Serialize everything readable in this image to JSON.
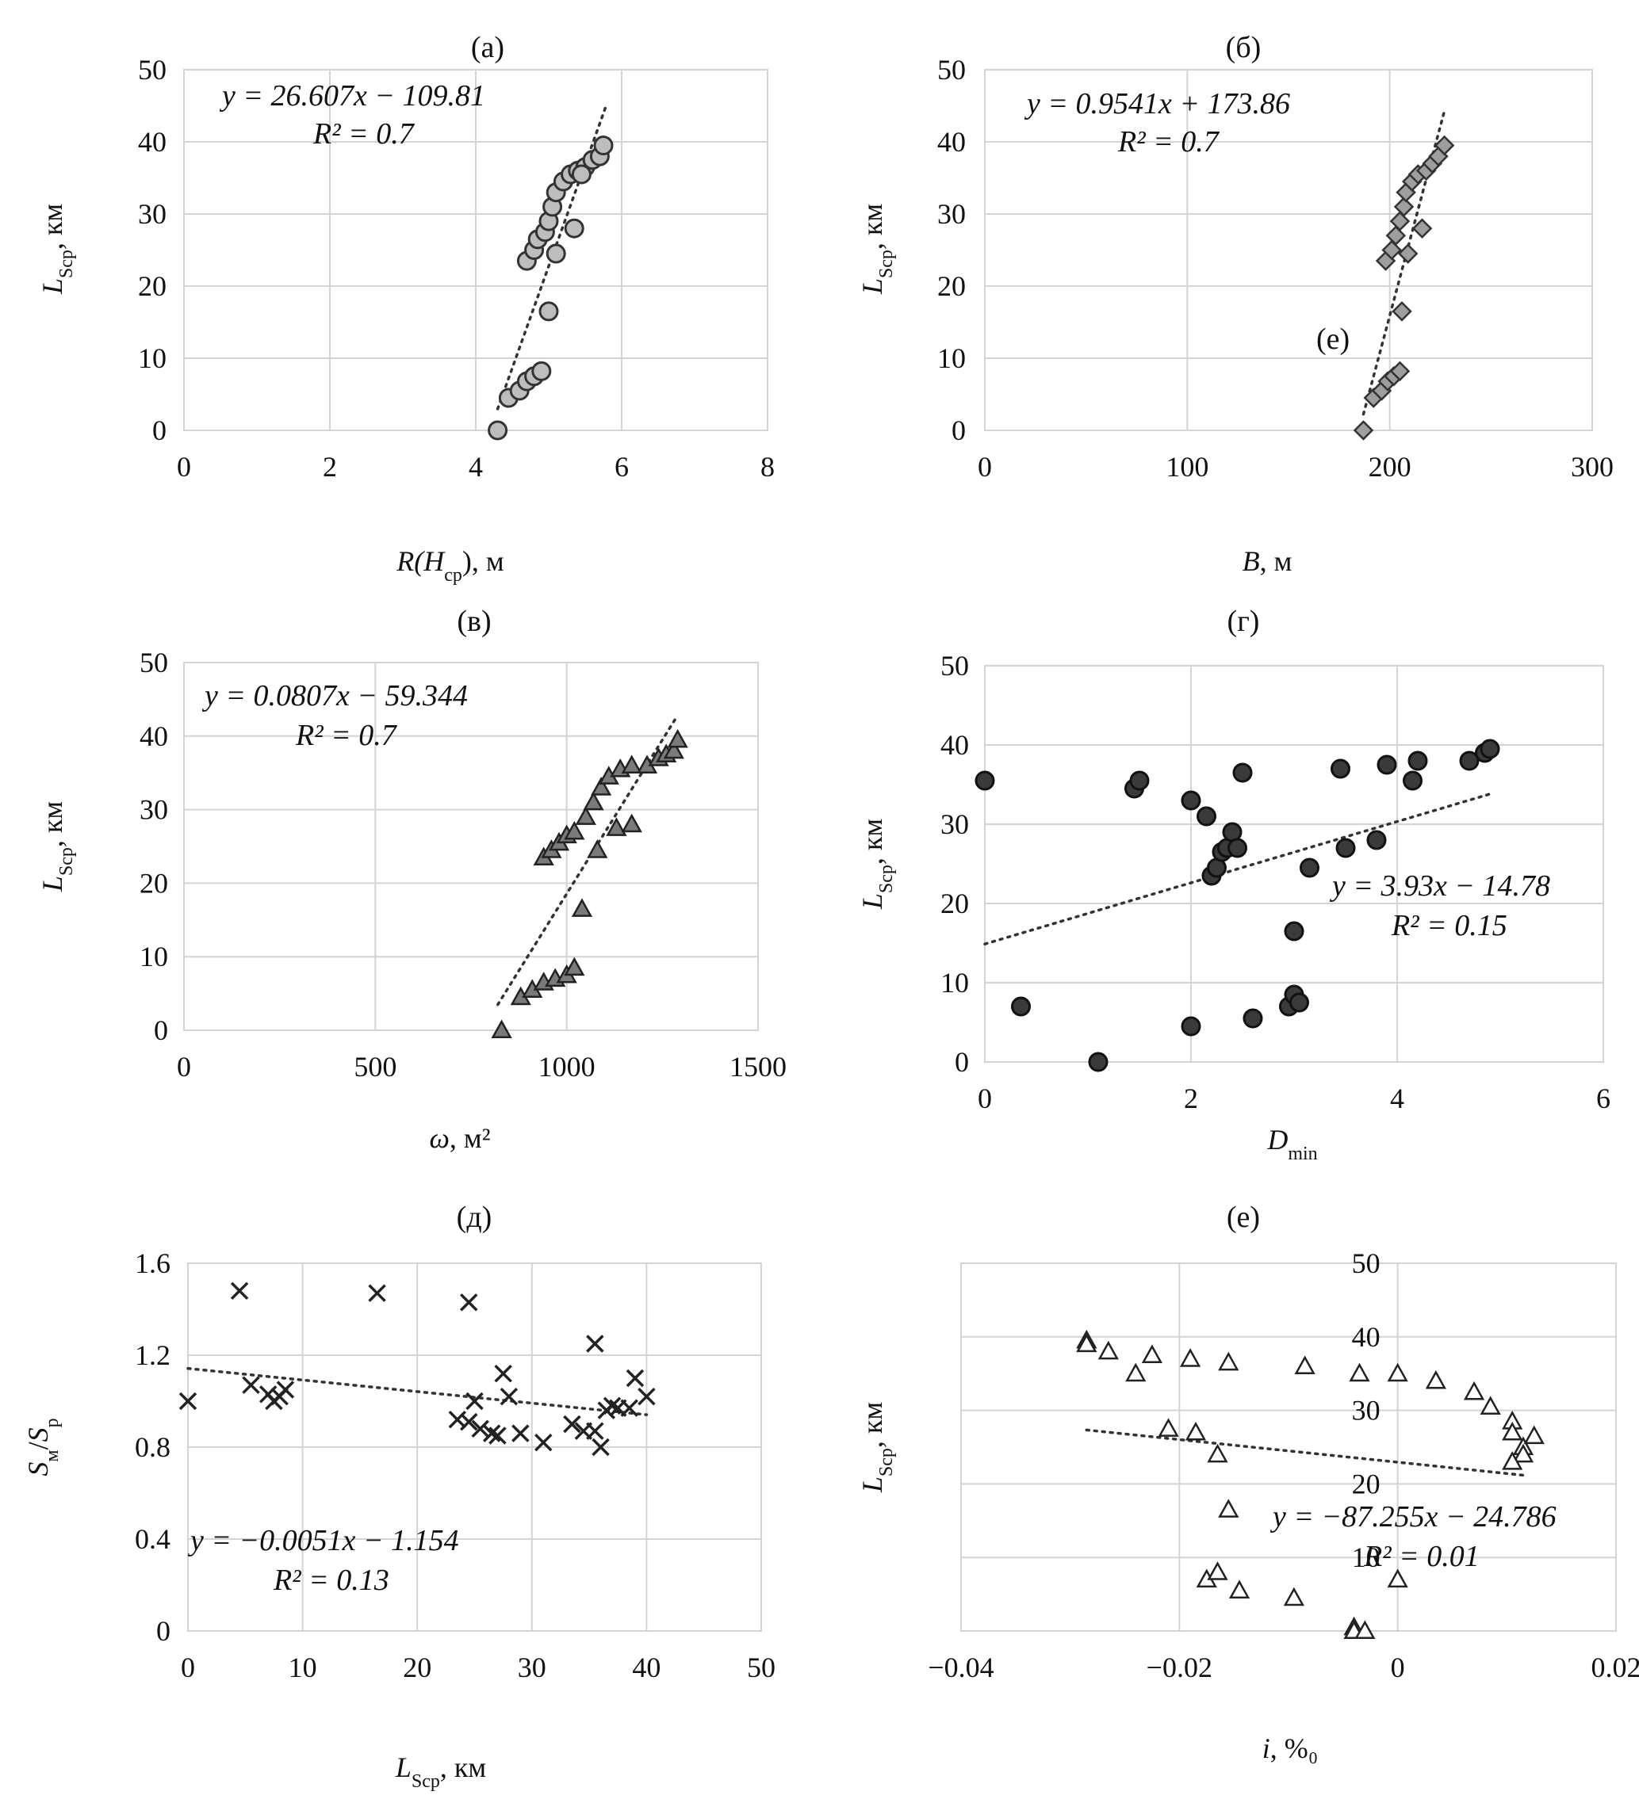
{
  "chart_data": [
    {
      "id": "a",
      "type": "scatter",
      "title": "(а)",
      "xlabel": {
        "main": "R(H",
        "sub": "ср",
        "after": "), м"
      },
      "ylabel": {
        "main": "L",
        "sub": "Sср",
        "after": ", км"
      },
      "xlim": [
        0,
        8
      ],
      "ylim": [
        0,
        50
      ],
      "xticks": [
        0,
        2,
        4,
        6,
        8
      ],
      "yticks": [
        0,
        10,
        20,
        30,
        40,
        50
      ],
      "grid": true,
      "marker": "circle",
      "marker_fill": "#bdbdbd",
      "marker_stroke": "#333333",
      "points": [
        [
          4.3,
          0
        ],
        [
          4.45,
          4.5
        ],
        [
          4.6,
          5.5
        ],
        [
          4.7,
          6.8
        ],
        [
          4.8,
          7.5
        ],
        [
          4.9,
          8.2
        ],
        [
          5.0,
          16.5
        ],
        [
          4.7,
          23.5
        ],
        [
          4.8,
          25
        ],
        [
          4.85,
          26.5
        ],
        [
          4.95,
          27.5
        ],
        [
          5.1,
          24.5
        ],
        [
          5.35,
          28
        ],
        [
          5.0,
          29
        ],
        [
          5.05,
          31
        ],
        [
          5.1,
          33
        ],
        [
          5.2,
          34.5
        ],
        [
          5.3,
          35.5
        ],
        [
          5.4,
          36
        ],
        [
          5.5,
          36.5
        ],
        [
          5.45,
          35.5
        ],
        [
          5.6,
          37.5
        ],
        [
          5.7,
          38
        ],
        [
          5.75,
          39.5
        ]
      ],
      "trendline": {
        "x": [
          4.3,
          5.8
        ],
        "equation": "y = 26.607x − 109.81",
        "r2": "R² = 0.7"
      },
      "annotations": []
    },
    {
      "id": "b",
      "type": "scatter",
      "title": "(б)",
      "xlabel": {
        "main": "B",
        "sub": "",
        "after": ", м"
      },
      "ylabel": {
        "main": "L",
        "sub": "Sср",
        "after": ", км"
      },
      "xlim": [
        0,
        300
      ],
      "ylim": [
        0,
        50
      ],
      "xticks": [
        0,
        100,
        200,
        300
      ],
      "yticks": [
        0,
        10,
        20,
        30,
        40,
        50
      ],
      "grid": true,
      "marker": "diamond",
      "marker_fill": "#9e9e9e",
      "marker_stroke": "#333333",
      "points": [
        [
          187,
          0
        ],
        [
          192,
          4.5
        ],
        [
          196,
          5.5
        ],
        [
          199,
          6.8
        ],
        [
          202,
          7.5
        ],
        [
          205,
          8.2
        ],
        [
          206,
          16.5
        ],
        [
          198,
          23.5
        ],
        [
          201,
          25
        ],
        [
          203,
          27
        ],
        [
          205,
          29
        ],
        [
          207,
          31
        ],
        [
          209,
          24.5
        ],
        [
          216,
          28
        ],
        [
          208,
          33
        ],
        [
          211,
          34.5
        ],
        [
          214,
          35.5
        ],
        [
          218,
          36
        ],
        [
          221,
          37
        ],
        [
          224,
          38
        ],
        [
          227,
          39.5
        ]
      ],
      "trendline": {
        "x": [
          187,
          227
        ],
        "equation": "y = 0.9541x + 173.86",
        "r2": "R² = 0.7"
      },
      "annotations": [
        "(е)"
      ]
    },
    {
      "id": "v",
      "type": "scatter",
      "title": "(в)",
      "xlabel": {
        "main": "ω",
        "sub": "",
        "after": ", м²"
      },
      "ylabel": {
        "main": "L",
        "sub": "Sср",
        "after": ", км"
      },
      "xlim": [
        0,
        1500
      ],
      "ylim": [
        0,
        50
      ],
      "xticks": [
        0,
        500,
        1000,
        1500
      ],
      "yticks": [
        0,
        10,
        20,
        30,
        40,
        50
      ],
      "grid": true,
      "marker": "triangle",
      "marker_fill": "#7a7a7a",
      "marker_stroke": "#222222",
      "points": [
        [
          830,
          0
        ],
        [
          880,
          4.5
        ],
        [
          910,
          5.5
        ],
        [
          940,
          6.5
        ],
        [
          970,
          7
        ],
        [
          1000,
          7.5
        ],
        [
          1020,
          8.5
        ],
        [
          1040,
          16.5
        ],
        [
          940,
          23.5
        ],
        [
          960,
          24.5
        ],
        [
          980,
          25.5
        ],
        [
          1000,
          26.5
        ],
        [
          1020,
          27
        ],
        [
          1050,
          29
        ],
        [
          1070,
          31
        ],
        [
          1090,
          33
        ],
        [
          1110,
          34.5
        ],
        [
          1140,
          35.5
        ],
        [
          1170,
          36
        ],
        [
          1210,
          36
        ],
        [
          1240,
          37
        ],
        [
          1260,
          37.5
        ],
        [
          1280,
          38
        ],
        [
          1290,
          39.5
        ],
        [
          1080,
          24.5
        ],
        [
          1130,
          27.5
        ],
        [
          1170,
          28
        ]
      ],
      "trendline": {
        "x": [
          820,
          1290
        ],
        "equation": "y = 0.0807x − 59.344",
        "r2": "R² = 0.7"
      },
      "annotations": []
    },
    {
      "id": "g",
      "type": "scatter",
      "title": "(г)",
      "xlabel": {
        "main": "D",
        "sub": "min",
        "after": ""
      },
      "ylabel": {
        "main": "L",
        "sub": "Sср",
        "after": ", км"
      },
      "xlim": [
        0,
        6
      ],
      "ylim": [
        0,
        50
      ],
      "xticks": [
        0,
        2,
        4,
        6
      ],
      "yticks": [
        0,
        10,
        20,
        30,
        40,
        50
      ],
      "grid": true,
      "marker": "circle",
      "marker_fill": "#3a3a3a",
      "marker_stroke": "#111111",
      "points": [
        [
          0,
          35.5
        ],
        [
          0.35,
          7
        ],
        [
          1.1,
          0
        ],
        [
          1.45,
          34.5
        ],
        [
          1.5,
          35.5
        ],
        [
          2.0,
          33
        ],
        [
          2.0,
          4.5
        ],
        [
          2.15,
          31
        ],
        [
          2.2,
          23.5
        ],
        [
          2.25,
          24.5
        ],
        [
          2.3,
          26.5
        ],
        [
          2.35,
          27
        ],
        [
          2.4,
          29
        ],
        [
          2.45,
          27
        ],
        [
          2.5,
          36.5
        ],
        [
          2.6,
          5.5
        ],
        [
          2.95,
          7
        ],
        [
          3.0,
          8.5
        ],
        [
          3.0,
          16.5
        ],
        [
          3.05,
          7.5
        ],
        [
          3.15,
          24.5
        ],
        [
          3.45,
          37
        ],
        [
          3.5,
          27
        ],
        [
          3.8,
          28
        ],
        [
          3.9,
          37.5
        ],
        [
          4.15,
          35.5
        ],
        [
          4.2,
          38
        ],
        [
          4.7,
          38
        ],
        [
          4.85,
          39
        ],
        [
          4.9,
          39.5
        ]
      ],
      "trendline": {
        "x": [
          0,
          4.9
        ],
        "equation": "y = 3.93x − 14.78",
        "r2": "R² = 0.15"
      },
      "annotations": []
    },
    {
      "id": "d",
      "type": "scatter",
      "title": "(д)",
      "xlabel": {
        "main": "L",
        "sub": "Sср",
        "after": ", км"
      },
      "ylabel": {
        "main": "S",
        "sub": "м",
        "after": "/S",
        "sub2": "р"
      },
      "xlim": [
        0,
        50
      ],
      "ylim": [
        0,
        1.6
      ],
      "xticks": [
        0,
        10,
        20,
        30,
        40,
        50
      ],
      "yticks": [
        0,
        0.4,
        0.8,
        1.2,
        1.6
      ],
      "grid": true,
      "marker": "cross",
      "marker_fill": "none",
      "marker_stroke": "#222222",
      "points": [
        [
          0,
          1.0
        ],
        [
          4.5,
          1.48
        ],
        [
          5.5,
          1.07
        ],
        [
          7,
          1.03
        ],
        [
          7.5,
          1.0
        ],
        [
          8,
          1.02
        ],
        [
          8.5,
          1.05
        ],
        [
          16.5,
          1.47
        ],
        [
          23.5,
          0.92
        ],
        [
          24.5,
          0.91
        ],
        [
          24.5,
          1.43
        ],
        [
          25,
          1.0
        ],
        [
          25.5,
          0.88
        ],
        [
          26.5,
          0.86
        ],
        [
          27,
          0.85
        ],
        [
          27.5,
          1.12
        ],
        [
          28,
          1.02
        ],
        [
          29,
          0.86
        ],
        [
          31,
          0.82
        ],
        [
          33.5,
          0.9
        ],
        [
          34.5,
          0.87
        ],
        [
          35.5,
          1.25
        ],
        [
          35.5,
          0.87
        ],
        [
          36,
          0.8
        ],
        [
          36.5,
          0.96
        ],
        [
          37,
          0.98
        ],
        [
          37.5,
          0.97
        ],
        [
          38.5,
          0.97
        ],
        [
          39,
          1.1
        ],
        [
          40,
          1.02
        ]
      ],
      "trendline": {
        "x": [
          0,
          40
        ],
        "equation": "y = −0.0051x − 1.154",
        "r2": "R² = 0.13"
      },
      "annotations": []
    },
    {
      "id": "e",
      "type": "scatter",
      "title": "(е)",
      "xlabel": {
        "main": "i",
        "sub": "",
        "after": ", %₀"
      },
      "ylabel": {
        "main": "L",
        "sub": "Sср",
        "after": ", км"
      },
      "xlim": [
        -0.04,
        0.02
      ],
      "ylim": [
        0,
        50
      ],
      "xticks": [
        -0.04,
        -0.02,
        0,
        0.02
      ],
      "xticklabels": [
        "−0.04",
        "−0.02",
        "0",
        "0.02"
      ],
      "yticks": [
        10,
        20,
        30,
        40,
        50
      ],
      "grid": true,
      "marker": "triangle-open",
      "marker_fill": "#ffffff",
      "marker_stroke": "#222222",
      "points": [
        [
          -0.0285,
          39.5
        ],
        [
          -0.0285,
          39
        ],
        [
          -0.0265,
          38
        ],
        [
          -0.0225,
          37.5
        ],
        [
          -0.024,
          35
        ],
        [
          -0.019,
          37
        ],
        [
          -0.0155,
          36.5
        ],
        [
          -0.0085,
          36
        ],
        [
          -0.0035,
          35
        ],
        [
          0,
          35
        ],
        [
          0.0035,
          34
        ],
        [
          0.007,
          32.5
        ],
        [
          0.0085,
          30.5
        ],
        [
          0.0105,
          28.5
        ],
        [
          0.0105,
          27
        ],
        [
          0.0115,
          25
        ],
        [
          0.0115,
          24
        ],
        [
          0.0105,
          23
        ],
        [
          0.0125,
          26.5
        ],
        [
          -0.021,
          27.5
        ],
        [
          -0.0185,
          27
        ],
        [
          -0.0165,
          24
        ],
        [
          -0.0155,
          16.5
        ],
        [
          -0.0175,
          7
        ],
        [
          -0.0165,
          8
        ],
        [
          -0.0145,
          5.5
        ],
        [
          -0.0095,
          4.5
        ],
        [
          0,
          7
        ],
        [
          -0.004,
          0.5
        ],
        [
          -0.004,
          0
        ],
        [
          -0.003,
          0
        ]
      ],
      "trendline": {
        "x": [
          -0.0285,
          0.0115
        ],
        "equation": "y = −87.255x − 24.786",
        "r2": "R² = 0.01"
      },
      "annotations": []
    }
  ]
}
